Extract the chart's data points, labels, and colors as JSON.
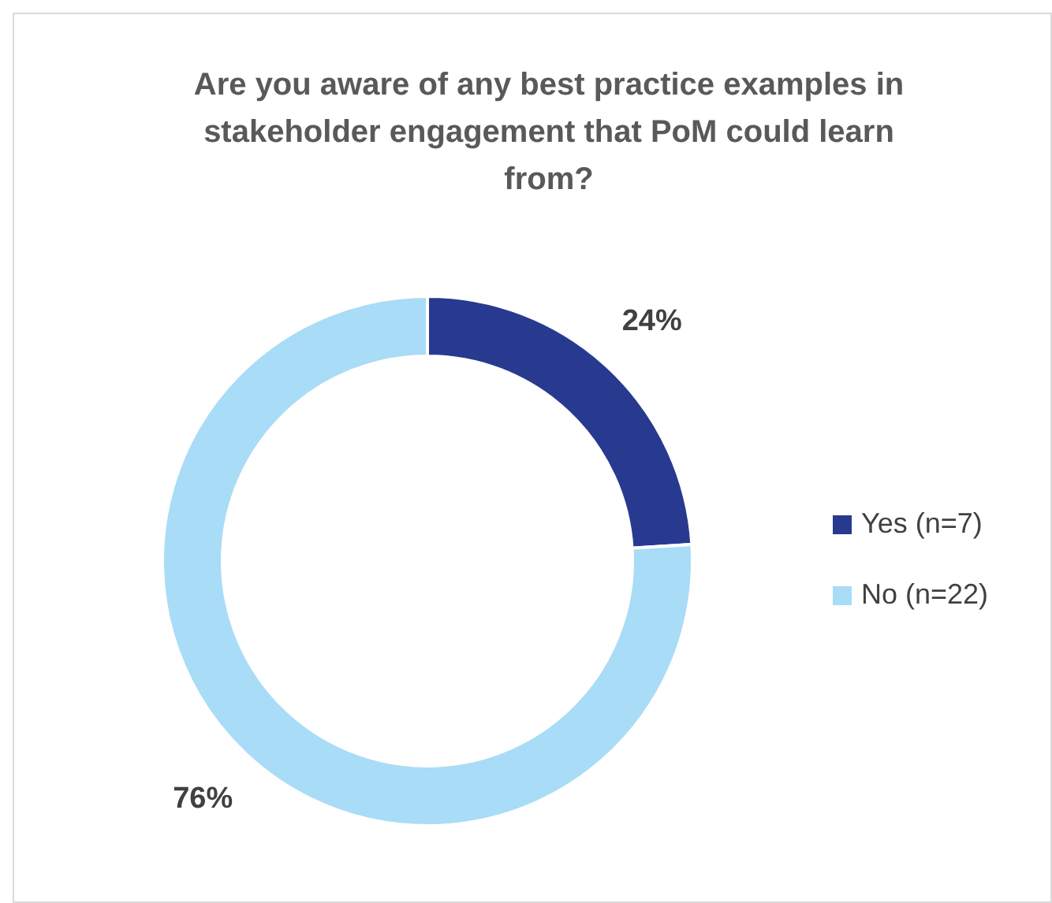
{
  "chart_data": {
    "type": "donut",
    "title": "Are you aware of any best practice examples in stakeholder engagement that PoM could learn from?",
    "categories": [
      "Yes (n=7)",
      "No (n=22)"
    ],
    "values": [
      24,
      76
    ],
    "colors": [
      "#283a8f",
      "#a9dcf6"
    ],
    "value_labels": [
      "24%",
      "76%"
    ],
    "legend": "right"
  }
}
